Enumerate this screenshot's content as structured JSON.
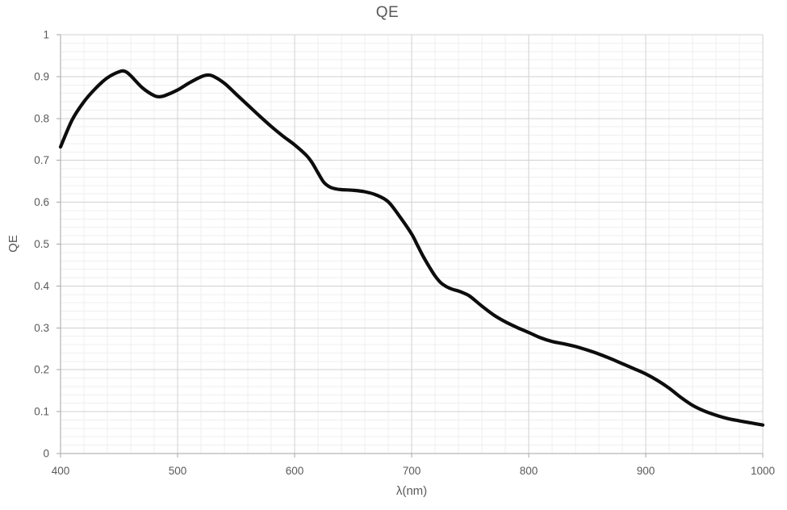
{
  "chart_data": {
    "type": "line",
    "title": "QE",
    "xlabel": "λ(nm)",
    "ylabel": "QE",
    "xlim": [
      400,
      1000
    ],
    "ylim": [
      0,
      1
    ],
    "x_major_ticks": [
      400,
      500,
      600,
      700,
      800,
      900,
      1000
    ],
    "y_major_ticks": [
      0,
      0.1,
      0.2,
      0.3,
      0.4,
      0.5,
      0.6,
      0.7,
      0.8,
      0.9,
      1
    ],
    "x_minor_step": 20,
    "y_minor_step": 0.02,
    "grid": "major-and-minor",
    "legend": "none",
    "series": [
      {
        "name": "QE",
        "points": [
          [
            400,
            0.732
          ],
          [
            410,
            0.797
          ],
          [
            420,
            0.84
          ],
          [
            430,
            0.872
          ],
          [
            440,
            0.897
          ],
          [
            450,
            0.9115
          ],
          [
            455,
            0.9125
          ],
          [
            460,
            0.902
          ],
          [
            470,
            0.873
          ],
          [
            480,
            0.8545
          ],
          [
            485,
            0.852
          ],
          [
            490,
            0.8555
          ],
          [
            500,
            0.868
          ],
          [
            510,
            0.885
          ],
          [
            520,
            0.8995
          ],
          [
            525,
            0.9035
          ],
          [
            530,
            0.9015
          ],
          [
            540,
            0.884
          ],
          [
            550,
            0.858
          ],
          [
            560,
            0.832
          ],
          [
            570,
            0.806
          ],
          [
            580,
            0.781
          ],
          [
            590,
            0.758
          ],
          [
            600,
            0.737
          ],
          [
            610,
            0.712
          ],
          [
            615,
            0.694
          ],
          [
            620,
            0.67
          ],
          [
            625,
            0.6475
          ],
          [
            630,
            0.6365
          ],
          [
            635,
            0.632
          ],
          [
            640,
            0.63
          ],
          [
            650,
            0.6285
          ],
          [
            660,
            0.625
          ],
          [
            670,
            0.617
          ],
          [
            680,
            0.601
          ],
          [
            690,
            0.565
          ],
          [
            700,
            0.524
          ],
          [
            705,
            0.497
          ],
          [
            710,
            0.47
          ],
          [
            715,
            0.446
          ],
          [
            720,
            0.424
          ],
          [
            725,
            0.4075
          ],
          [
            730,
            0.398
          ],
          [
            735,
            0.392
          ],
          [
            740,
            0.388
          ],
          [
            745,
            0.3825
          ],
          [
            750,
            0.375
          ],
          [
            760,
            0.352
          ],
          [
            770,
            0.331
          ],
          [
            780,
            0.3145
          ],
          [
            790,
            0.301
          ],
          [
            800,
            0.289
          ],
          [
            810,
            0.2765
          ],
          [
            820,
            0.2675
          ],
          [
            830,
            0.262
          ],
          [
            840,
            0.2555
          ],
          [
            850,
            0.247
          ],
          [
            860,
            0.2375
          ],
          [
            870,
            0.2265
          ],
          [
            880,
            0.2145
          ],
          [
            890,
            0.2025
          ],
          [
            900,
            0.19
          ],
          [
            910,
            0.1745
          ],
          [
            920,
            0.156
          ],
          [
            930,
            0.134
          ],
          [
            940,
            0.115
          ],
          [
            950,
            0.1015
          ],
          [
            960,
            0.0915
          ],
          [
            970,
            0.0835
          ],
          [
            980,
            0.078
          ],
          [
            990,
            0.073
          ],
          [
            1000,
            0.068
          ]
        ]
      }
    ],
    "colors": {
      "text": "#595959",
      "axis_line": "#a6a6a6",
      "grid_major": "#d2d2d2",
      "grid_minor": "#efefef",
      "curve": "#0d0d0d"
    }
  }
}
